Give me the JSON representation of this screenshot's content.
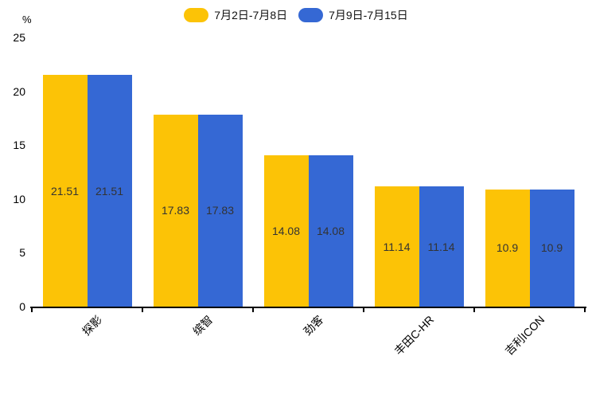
{
  "legend": [
    {
      "label": "7月2日-7月8日",
      "color": "#FCC306"
    },
    {
      "label": "7月9日-7月15日",
      "color": "#3568D4"
    }
  ],
  "y_axis": {
    "unit_label": "%",
    "ticks": [
      0,
      5,
      10,
      15,
      20,
      25
    ]
  },
  "chart_data": {
    "type": "bar",
    "categories": [
      "探影",
      "缤智",
      "劲客",
      "丰田C-HR",
      "吉利ICON"
    ],
    "series": [
      {
        "name": "7月2日-7月8日",
        "color": "#FCC306",
        "values": [
          21.51,
          17.83,
          14.08,
          11.14,
          10.9
        ]
      },
      {
        "name": "7月9日-7月15日",
        "color": "#3568D4",
        "values": [
          21.51,
          17.83,
          14.08,
          11.14,
          10.9
        ]
      }
    ],
    "value_labels": [
      "21.51",
      "17.83",
      "14.08",
      "11.14",
      "10.9"
    ],
    "xlabel": "",
    "ylabel": "%",
    "ylim": [
      0,
      25
    ],
    "yticks": [
      0,
      5,
      10,
      15,
      20,
      25
    ],
    "grid": false,
    "legend_position": "top-center",
    "value_label_position": "inside-center",
    "xtick_rotation": 45
  }
}
